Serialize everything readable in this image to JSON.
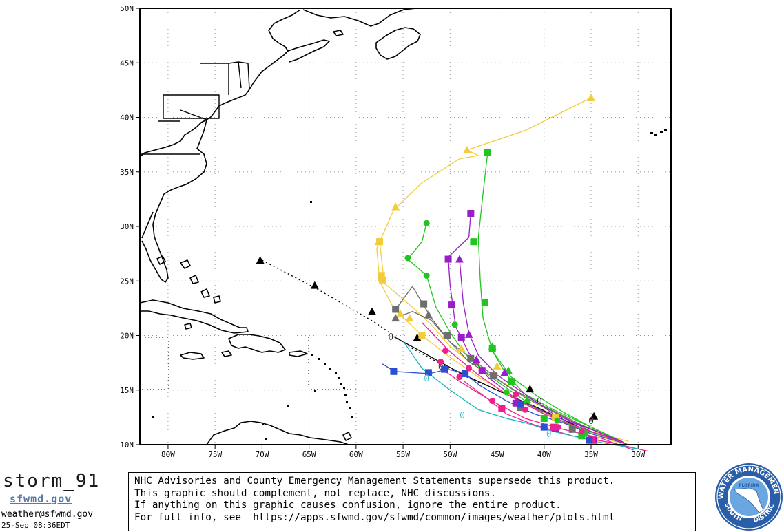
{
  "map": {
    "lat_labels": [
      "50N",
      "45N",
      "40N",
      "35N",
      "30N",
      "25N",
      "20N",
      "15N",
      "10N"
    ],
    "lon_labels": [
      "80W",
      "75W",
      "70W",
      "65W",
      "60W",
      "55W",
      "50W",
      "45W",
      "40W",
      "35W",
      "30W"
    ],
    "lon_range": [
      -83,
      -26.5
    ],
    "lat_range": [
      10,
      50
    ],
    "grid": "dotted",
    "track_colors": {
      "black": "#000000",
      "gray": "#6e6e6e",
      "yellow": "#f2cc3a",
      "green": "#22c422",
      "purple": "#9a1ec8",
      "magenta": "#ee2090",
      "blue": "#2a50d0",
      "cyan": "#18b4c8"
    },
    "marker_icons": {
      "triangle": "triangle-icon",
      "square": "square-icon",
      "circle": "circle-icon",
      "zero": "zero-glyph"
    }
  },
  "footer": {
    "storm_id": "storm_91",
    "brand": "sfwmd.gov",
    "email": "weather@sfwmd.gov",
    "timestamp": "25-Sep 08:36EDT",
    "disclaimer": [
      "NHC Advisories and County Emergency Management Statements supersede this product.",
      "This graphic should complement, not replace, NHC discussions.",
      "If anything on this graphic causes confusion, ignore the entire product.",
      "For full info, see  https://apps.sfwmd.gov/sfwmd/common/images/weather/plots.html"
    ],
    "logo": {
      "top_text": "WATER MANAGEMENT",
      "left_text": "SOUTH",
      "right_text": "DISTRICT",
      "center_text": "FLORIDA"
    }
  }
}
